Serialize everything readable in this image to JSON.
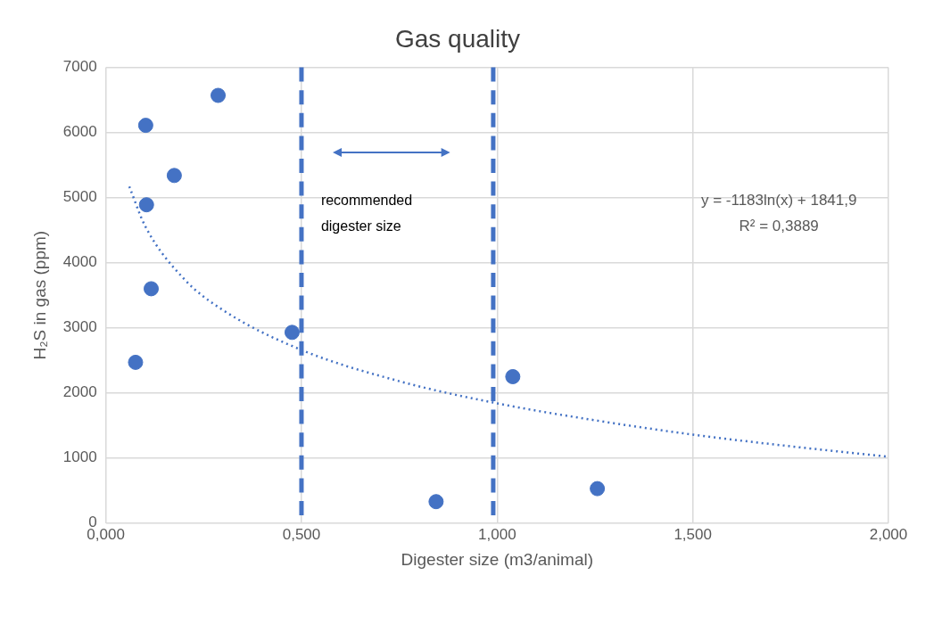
{
  "chart_data": {
    "type": "scatter",
    "title": "Gas quality",
    "xlabel": "Digester size (m3/animal)",
    "ylabel": "H₂S in gas (ppm)",
    "xlim": [
      0,
      2
    ],
    "xticks": [
      {
        "value": 0,
        "label": "0,000"
      },
      {
        "value": 0.5,
        "label": "0,500"
      },
      {
        "value": 1,
        "label": "1,000"
      },
      {
        "value": 1.5,
        "label": "1,500"
      },
      {
        "value": 2,
        "label": "2,000"
      }
    ],
    "ylim": [
      0,
      7000
    ],
    "yticks": [
      0,
      1000,
      2000,
      3000,
      4000,
      5000,
      6000,
      7000
    ],
    "grid": true,
    "legend": false,
    "marker": "circle",
    "series": [
      {
        "color": "#4472c4",
        "x": [
          0.076,
          0.102,
          0.104,
          0.116,
          0.175,
          0.287,
          0.476,
          0.844,
          1.04,
          1.256
        ],
        "values": [
          2470,
          6110,
          4890,
          3600,
          5340,
          6570,
          2930,
          330,
          2250,
          530
        ]
      },
      {
        "type": "line",
        "color": "#4472c4",
        "line_style": "dotted",
        "marker": "none",
        "x": [
          0.06,
          0.1,
          0.2,
          0.3,
          0.5,
          0.75,
          1.0,
          1.25,
          1.5,
          1.75,
          2.0
        ],
        "values": [
          5170,
          4570,
          3750,
          3270,
          2660,
          2180,
          1840,
          1580,
          1360,
          1180,
          1020
        ]
      }
    ],
    "ref_lines": [
      {
        "axis": "x",
        "value": 0.5,
        "color": "#4472c4",
        "line_style": "dashed"
      },
      {
        "axis": "x",
        "value": 0.99,
        "color": "#4472c4",
        "line_style": "dashed"
      }
    ],
    "annotations": [
      "recommended digester size",
      "y = -1183ln(x) + 1841,9",
      "R² = 0,3889"
    ]
  }
}
